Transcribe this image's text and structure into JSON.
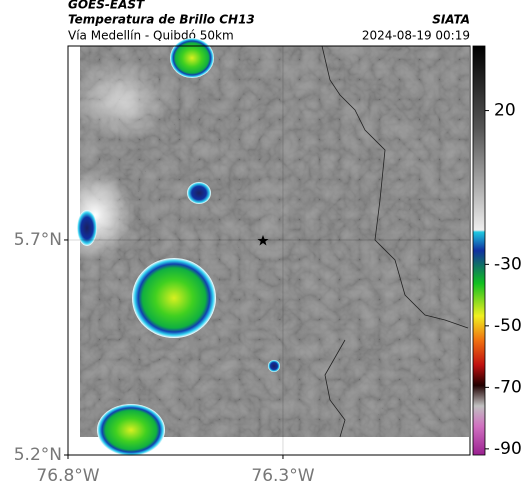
{
  "header": {
    "source": "GOES-EAST",
    "title": "Temperatura de Brillo CH13",
    "brand": "SIATA",
    "subtitle": "Vía Medellín - Quibdó 50km",
    "timestamp": "2024-08-19 00:19"
  },
  "map": {
    "xlim": [
      -76.8,
      -75.865
    ],
    "ylim": [
      5.2,
      6.151
    ],
    "xticks": [
      {
        "value": -76.8,
        "label": "76.8°W"
      },
      {
        "value": -76.3,
        "label": "76.3°W"
      }
    ],
    "yticks": [
      {
        "value": 5.7,
        "label": "5.7°N"
      },
      {
        "value": 5.2,
        "label": "5.2°N"
      }
    ]
  },
  "colorbar": {
    "lim": [
      -92,
      41
    ],
    "ticks": [
      20,
      -30,
      -50,
      -70,
      -90
    ]
  }
}
